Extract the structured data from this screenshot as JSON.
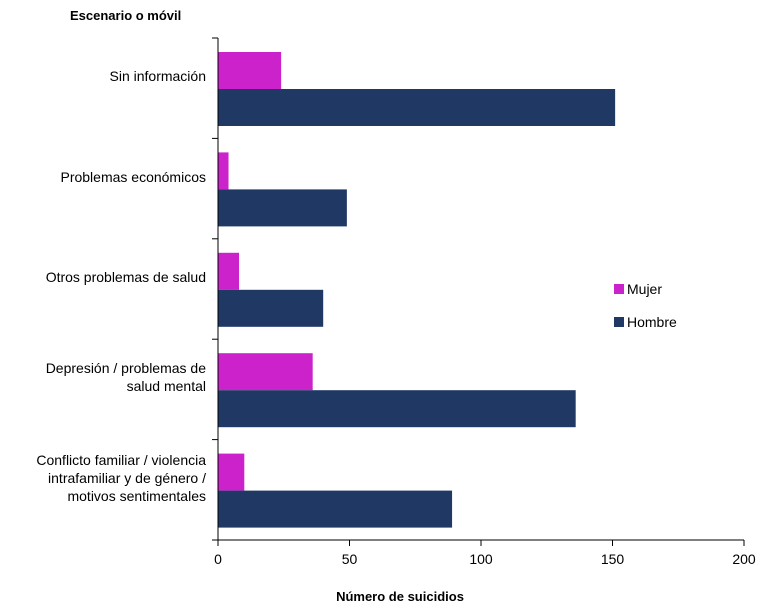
{
  "chart_data": {
    "type": "bar",
    "orientation": "horizontal",
    "ylabel": "Escenario o móvil",
    "xlabel": "Número de suicidios",
    "xlim": [
      0,
      200
    ],
    "xticks": [
      0,
      50,
      100,
      150,
      200
    ],
    "xtick_labels": [
      "0",
      "50",
      "100",
      "150",
      "200"
    ],
    "categories": [
      "Sin información",
      "Problemas económicos",
      "Otros problemas de salud",
      "Depresión / problemas de\nsalud mental",
      "Conflicto familiar / violencia\nintrafamiliar y de género /\nmotivos sentimentales"
    ],
    "series": [
      {
        "name": "Mujer",
        "color": "#cc22cc",
        "values": [
          24,
          4,
          8,
          36,
          10
        ]
      },
      {
        "name": "Hombre",
        "color": "#1f3864",
        "values": [
          151,
          49,
          40,
          136,
          89
        ]
      }
    ],
    "legend_position": "right",
    "grid": false
  }
}
